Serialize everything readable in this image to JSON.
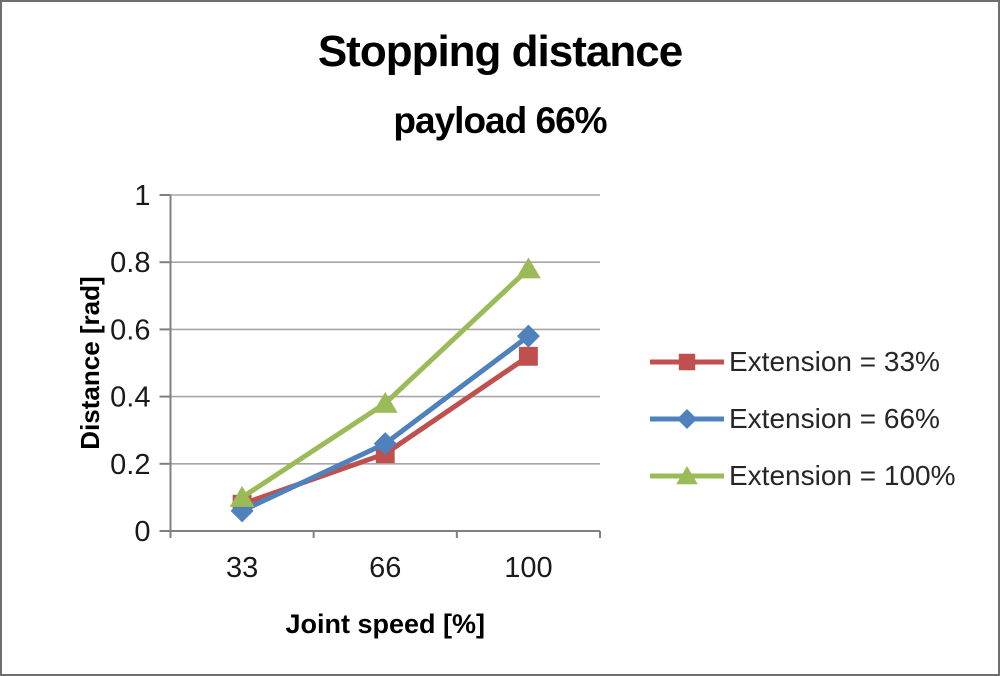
{
  "frame": {
    "background": "#ffffff",
    "border_color": "#6f6f6f"
  },
  "chart_data": {
    "type": "line",
    "title": "Stopping distance",
    "subtitle": "payload 66%",
    "xlabel": "Joint speed [%]",
    "ylabel": "Distance [rad]",
    "x_categories": [
      "33",
      "66",
      "100"
    ],
    "x_values": [
      33,
      66,
      100
    ],
    "y_ticks": [
      "0",
      "0.2",
      "0.4",
      "0.6",
      "0.8",
      "1"
    ],
    "ylim": [
      0,
      1
    ],
    "grid": "horizontal",
    "legend_position": "right",
    "series": [
      {
        "name": "Extension = 33%",
        "marker": "square",
        "color": "#c0504d",
        "values": [
          0.08,
          0.23,
          0.52
        ]
      },
      {
        "name": "Extension = 66%",
        "marker": "diamond",
        "color": "#4f81bd",
        "values": [
          0.06,
          0.26,
          0.58
        ]
      },
      {
        "name": "Extension = 100%",
        "marker": "triangle",
        "color": "#9bbb59",
        "values": [
          0.1,
          0.38,
          0.78
        ]
      }
    ],
    "axis_color": "#808080",
    "gridline_color": "#a6a6a6",
    "tick_text_color": "#1a1a1a",
    "axis_title_color": "#000000"
  }
}
